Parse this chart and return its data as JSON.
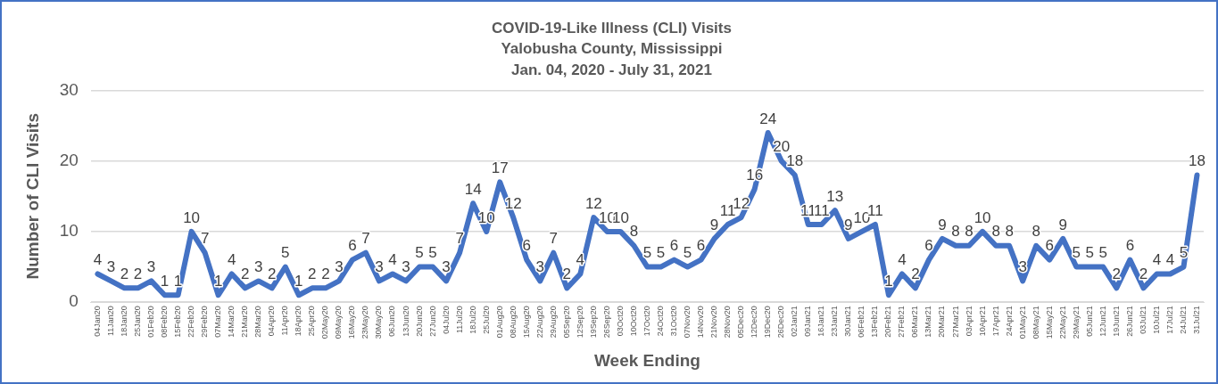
{
  "chart_data": {
    "type": "line",
    "title": "COVID-19-Like Illness (CLI) Visits\nYalobusha County, Mississippi\nJan. 04, 2020 - July 31, 2021",
    "xlabel": "Week Ending",
    "ylabel": "Number of CLI Visits",
    "categories": [
      "04Jan20",
      "11Jan20",
      "18Jan20",
      "25Jan20",
      "01Feb20",
      "08Feb20",
      "15Feb20",
      "22Feb20",
      "29Feb20",
      "07Mar20",
      "14Mar20",
      "21Mar20",
      "28Mar20",
      "04Apr20",
      "11Apr20",
      "18Apr20",
      "25Apr20",
      "02May20",
      "09May20",
      "16May20",
      "23May20",
      "30May20",
      "06Jun20",
      "13Jun20",
      "20Jun20",
      "27Jun20",
      "04Jul20",
      "11Jul20",
      "18Jul20",
      "25Jul20",
      "01Aug20",
      "08Aug20",
      "15Aug20",
      "22Aug20",
      "29Aug20",
      "05Sep20",
      "12Sep20",
      "19Sep20",
      "26Sep20",
      "03Oct20",
      "10Oct20",
      "17Oct20",
      "24Oct20",
      "31Oct20",
      "07Nov20",
      "14Nov20",
      "21Nov20",
      "28Nov20",
      "05Dec20",
      "12Dec20",
      "19Dec20",
      "26Dec20",
      "02Jan21",
      "09Jan21",
      "16Jan21",
      "23Jan21",
      "30Jan21",
      "06Feb21",
      "13Feb21",
      "20Feb21",
      "27Feb21",
      "06Mar21",
      "13Mar21",
      "20Mar21",
      "27Mar21",
      "03Apr21",
      "10Apr21",
      "17Apr21",
      "24Apr21",
      "01May21",
      "08May21",
      "15May21",
      "22May21",
      "29May21",
      "05Jun21",
      "12Jun21",
      "19Jun21",
      "26Jun21",
      "03Jul21",
      "10Jul21",
      "17Jul21",
      "24Jul21",
      "31Jul21"
    ],
    "series": [
      {
        "color": "#4472c4",
        "values": [
          4,
          3,
          2,
          2,
          3,
          1,
          1,
          10,
          7,
          1,
          4,
          2,
          3,
          2,
          5,
          1,
          2,
          2,
          3,
          6,
          7,
          3,
          4,
          3,
          5,
          5,
          3,
          7,
          14,
          10,
          17,
          12,
          6,
          3,
          7,
          2,
          4,
          12,
          10,
          10,
          8,
          5,
          5,
          6,
          5,
          6,
          9,
          11,
          12,
          16,
          24,
          20,
          18,
          11,
          11,
          13,
          9,
          10,
          11,
          1,
          4,
          2,
          6,
          9,
          8,
          8,
          10,
          8,
          8,
          3,
          8,
          6,
          9,
          5,
          5,
          5,
          2,
          6,
          2,
          4,
          4,
          5,
          18
        ]
      }
    ],
    "ylim": [
      0,
      30
    ],
    "yticks": [
      0,
      10,
      20,
      30
    ],
    "grid": "y",
    "legend": false,
    "data_labels": true,
    "marker": "none",
    "line_style": "solid"
  }
}
